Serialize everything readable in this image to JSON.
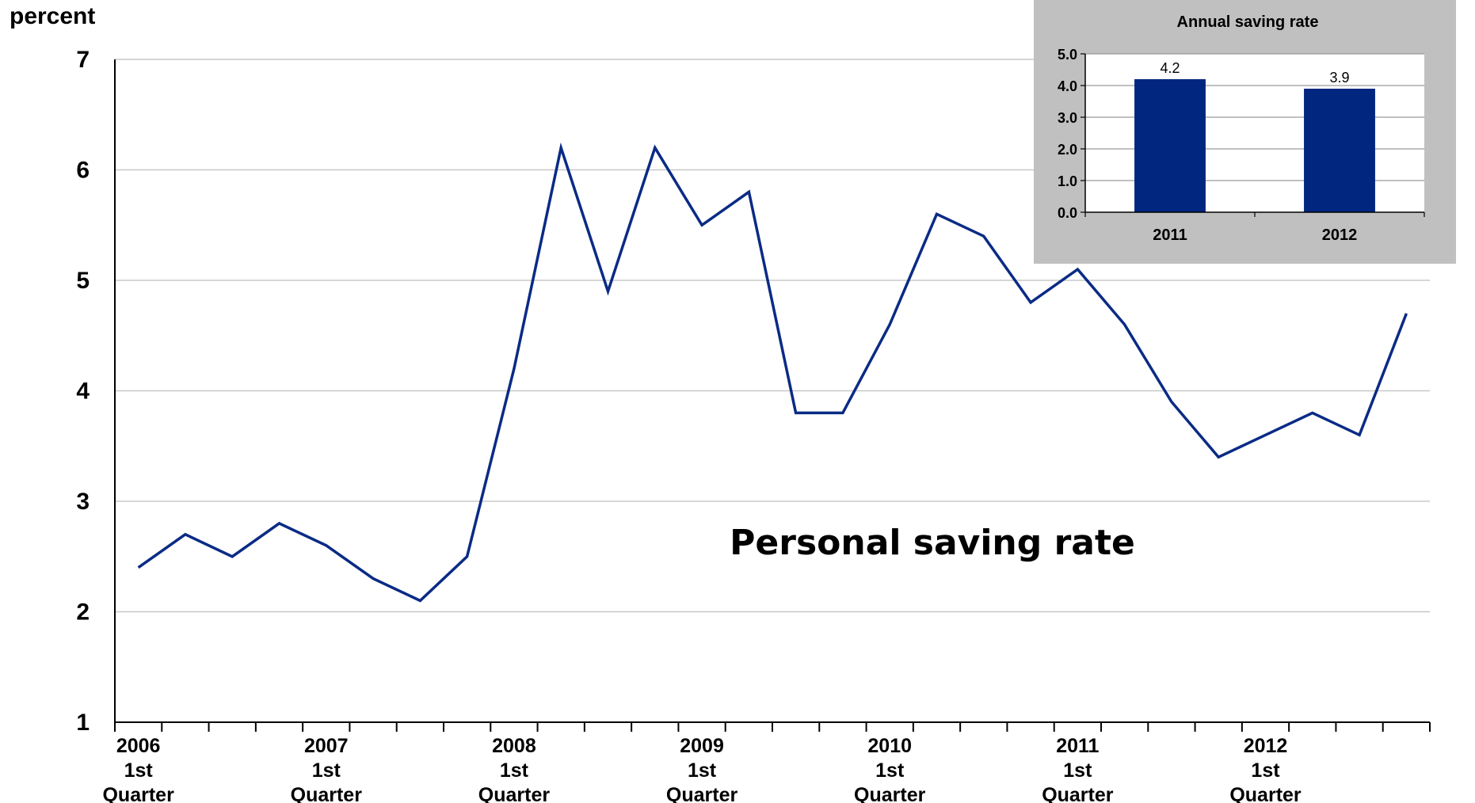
{
  "chart_data": [
    {
      "type": "line",
      "annotation": "Personal saving rate",
      "ylabel": "percent",
      "ylim": [
        1,
        7
      ],
      "yticks": [
        1,
        2,
        3,
        4,
        5,
        6,
        7
      ],
      "grid": true,
      "x_tick_labels": [
        {
          "year": "2006",
          "line2": "1st",
          "line3": "Quarter"
        },
        {
          "year": "2007",
          "line2": "1st",
          "line3": "Quarter"
        },
        {
          "year": "2008",
          "line2": "1st",
          "line3": "Quarter"
        },
        {
          "year": "2009",
          "line2": "1st",
          "line3": "Quarter"
        },
        {
          "year": "2010",
          "line2": "1st",
          "line3": "Quarter"
        },
        {
          "year": "2011",
          "line2": "1st",
          "line3": "Quarter"
        },
        {
          "year": "2012",
          "line2": "1st",
          "line3": "Quarter"
        }
      ],
      "x": [
        "2006Q1",
        "2006Q2",
        "2006Q3",
        "2006Q4",
        "2007Q1",
        "2007Q2",
        "2007Q3",
        "2007Q4",
        "2008Q1",
        "2008Q2",
        "2008Q3",
        "2008Q4",
        "2009Q1",
        "2009Q2",
        "2009Q3",
        "2009Q4",
        "2010Q1",
        "2010Q2",
        "2010Q3",
        "2010Q4",
        "2011Q1",
        "2011Q2",
        "2011Q3",
        "2011Q4",
        "2012Q1",
        "2012Q2",
        "2012Q3",
        "2012Q4"
      ],
      "series": [
        {
          "values": [
            2.4,
            2.7,
            2.5,
            2.8,
            2.6,
            2.3,
            2.1,
            2.5,
            4.2,
            6.2,
            4.9,
            6.2,
            5.5,
            5.8,
            3.8,
            3.8,
            4.6,
            5.6,
            5.4,
            4.8,
            5.1,
            4.6,
            3.9,
            3.4,
            3.6,
            3.8,
            3.6,
            4.7
          ],
          "color": "#0a2b85"
        }
      ]
    },
    {
      "type": "bar",
      "title": "Annual saving rate",
      "categories": [
        "2011",
        "2012"
      ],
      "values": [
        4.2,
        3.9
      ],
      "value_labels": [
        "4.2",
        "3.9"
      ],
      "ylim": [
        0,
        5
      ],
      "yticks": [
        "0.0",
        "1.0",
        "2.0",
        "3.0",
        "4.0",
        "5.0"
      ],
      "grid": true,
      "bar_color": "#002680",
      "panel_color": "#c0c0c0"
    }
  ]
}
